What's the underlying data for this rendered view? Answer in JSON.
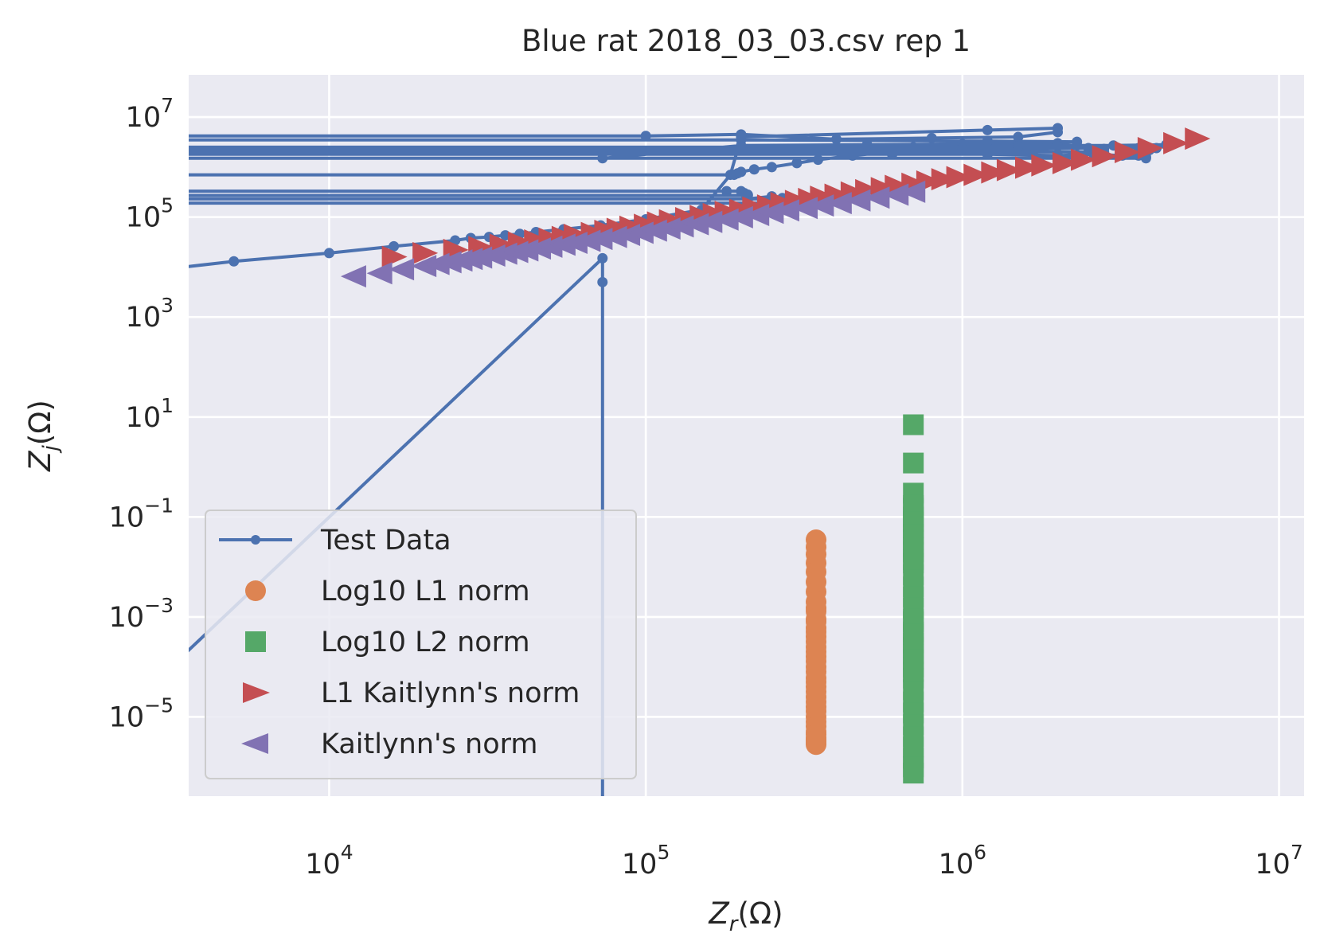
{
  "chart_data": {
    "type": "line",
    "title": "Blue rat 2018_03_03.csv rep 1",
    "xlabel": {
      "main": "Z",
      "sub": "r",
      "unit": "(Ω)"
    },
    "ylabel": {
      "main": "Z",
      "sub": "j",
      "unit": "(Ω)"
    },
    "xscale": "log",
    "yscale": "log",
    "xlim": [
      3600,
      12000000
    ],
    "ylim": [
      2.6e-07,
      70000000
    ],
    "grid": true,
    "legend": {
      "position": "lower-left"
    },
    "x_ticks": [
      {
        "base": "10",
        "exp": "4",
        "value": 10000
      },
      {
        "base": "10",
        "exp": "5",
        "value": 100000
      },
      {
        "base": "10",
        "exp": "6",
        "value": 1000000
      },
      {
        "base": "10",
        "exp": "7",
        "value": 10000000
      }
    ],
    "y_ticks": [
      {
        "base": "10",
        "exp": "−5",
        "value": 1e-05
      },
      {
        "base": "10",
        "exp": "−3",
        "value": 0.001
      },
      {
        "base": "10",
        "exp": "−1",
        "value": 0.1
      },
      {
        "base": "10",
        "exp": "1",
        "value": 10
      },
      {
        "base": "10",
        "exp": "3",
        "value": 1000
      },
      {
        "base": "10",
        "exp": "5",
        "value": 100000
      },
      {
        "base": "10",
        "exp": "7",
        "value": 10000000
      }
    ],
    "series": [
      {
        "name": "Test Data",
        "marker": "point-line",
        "color": "#4c72b0",
        "x": [
          3000,
          5000,
          10000,
          16000,
          25000,
          28000,
          32000,
          36000,
          40000,
          45000,
          55000,
          72000,
          100000,
          150000,
          185000,
          200000,
          1200000,
          2000000,
          2000000,
          1500000,
          800000,
          400000,
          200000,
          100000,
          1000,
          1000,
          200000,
          1200000,
          2300000,
          2000000,
          1000000,
          500000,
          200000,
          73000,
          1000,
          1000,
          800000,
          1700000,
          2500000,
          2800000,
          2800000,
          1000,
          1000,
          600000,
          1200000,
          2000000,
          2600000,
          3200000,
          3600000,
          3800000,
          3800000,
          1000,
          1000,
          700000,
          1500000,
          2300000,
          3000000,
          3600000,
          3900000,
          4100000,
          4400000,
          2000000,
          1000000,
          600000,
          450000,
          350000,
          300000,
          250000,
          220000,
          200000,
          195000,
          190000,
          1000,
          1000,
          180000,
          200000,
          205000,
          210000,
          210000,
          1000,
          1000,
          210000,
          250000,
          270000,
          285000,
          285000,
          1000,
          1000,
          290000,
          350000,
          385000,
          390000,
          390000,
          1000,
          1000,
          73000,
          73000,
          73000
        ],
        "y": [
          9000,
          13000,
          19000,
          26000,
          34000,
          38000,
          40000,
          43000,
          46000,
          50000,
          57000,
          68000,
          90000,
          140000,
          700000,
          4000000,
          5500000,
          6000000,
          5000000,
          4000000,
          3800000,
          3600000,
          4500000,
          4200000,
          4200000,
          3500000,
          3500000,
          3300000,
          3200000,
          3000000,
          2900000,
          2800000,
          2700000,
          1500000,
          1500000,
          2200000,
          2200000,
          2300000,
          2400000,
          2300000,
          2000000,
          2000000,
          1800000,
          1800000,
          1800000,
          1700000,
          1800000,
          1700000,
          1700000,
          1600000,
          1500000,
          1500000,
          2500000,
          2500000,
          2600000,
          2700000,
          2700000,
          2400000,
          2200000,
          2400000,
          2800000,
          2600000,
          2400000,
          2000000,
          1700000,
          1400000,
          1200000,
          1000000,
          900000,
          800000,
          750000,
          700000,
          700000,
          330000,
          330000,
          330000,
          300000,
          280000,
          270000,
          270000,
          230000,
          230000,
          260000,
          240000,
          240000,
          230000,
          230000,
          190000,
          190000,
          200000,
          220000,
          230000,
          230000,
          230000,
          1e-07,
          15000,
          5000,
          1e-07
        ]
      },
      {
        "name": "Log10 L1 norm",
        "marker": "circle",
        "color": "#dd8452",
        "x": [
          345000,
          345000,
          345000,
          345000,
          345000,
          345000,
          345000,
          345000,
          345000,
          345000,
          345000,
          345000,
          345000,
          345000,
          345000,
          345000,
          345000,
          345000,
          345000,
          345000,
          345000,
          345000,
          345000,
          345000,
          345000,
          345000,
          345000,
          345000,
          345000,
          345000,
          345000,
          345000,
          345000,
          345000,
          345000,
          345000,
          345000,
          345000,
          345000,
          345000
        ],
        "y": [
          0.035,
          0.025,
          0.018,
          0.012,
          0.008,
          0.005,
          0.0032,
          0.002,
          0.0013,
          0.0008,
          0.0005,
          0.00032,
          0.0002,
          0.00013,
          8e-05,
          5e-05,
          3.2e-05,
          2e-05,
          1.3e-05,
          8e-06,
          5e-06,
          3.2e-06,
          0.0015,
          0.0009,
          0.0006,
          0.0004,
          0.00025,
          0.00016,
          0.0001,
          6e-05,
          4e-05,
          2.5e-05,
          1.6e-05,
          1e-05,
          6.5e-06,
          4.5e-06,
          3.8e-06,
          3.5e-06,
          3e-06,
          2.8e-06
        ]
      },
      {
        "name": "Log10 L2 norm",
        "marker": "square",
        "color": "#55a868",
        "x": [
          700000,
          700000,
          700000,
          700000,
          700000,
          700000,
          700000,
          700000,
          700000,
          700000,
          700000,
          700000,
          700000,
          700000,
          700000,
          700000,
          700000,
          700000,
          700000,
          700000,
          700000,
          700000,
          700000,
          700000,
          700000,
          700000,
          700000,
          700000,
          700000,
          700000,
          700000,
          700000,
          700000,
          700000,
          700000,
          700000,
          700000,
          700000
        ],
        "y": [
          7,
          1.2,
          0.3,
          0.17,
          0.1,
          0.06,
          0.035,
          0.02,
          0.012,
          0.007,
          0.004,
          0.0025,
          0.0015,
          0.0009,
          0.0005,
          0.0003,
          0.00018,
          0.0001,
          6e-05,
          3.5e-05,
          2e-05,
          1.2e-05,
          7e-06,
          4e-06,
          2.5e-06,
          1.5e-06,
          1e-06,
          7.5e-07,
          0.15,
          0.08,
          0.045,
          0.025,
          0.014,
          0.0008,
          0.00045,
          0.00025,
          0.00014,
          8e-05
        ]
      },
      {
        "name": "L1 Kaitlynn's norm",
        "marker": "triangle-right",
        "color": "#c44e52",
        "x": [
          16000,
          20000,
          25000,
          30000,
          35000,
          40000,
          45000,
          50000,
          55000,
          60000,
          68000,
          75000,
          82000,
          90000,
          100000,
          110000,
          120000,
          135000,
          150000,
          165000,
          180000,
          200000,
          220000,
          245000,
          270000,
          300000,
          330000,
          360000,
          400000,
          450000,
          500000,
          560000,
          620000,
          700000,
          780000,
          870000,
          970000,
          1100000,
          1250000,
          1400000,
          1600000,
          1800000,
          2100000,
          2400000,
          2800000,
          3300000,
          3900000,
          4700000,
          5500000
        ],
        "y": [
          16000,
          19000,
          22000,
          25000,
          28000,
          31000,
          34000,
          37000,
          40000,
          44000,
          48000,
          53000,
          58000,
          64000,
          70000,
          78000,
          86000,
          95000,
          105000,
          115000,
          127000,
          140000,
          155000,
          170000,
          190000,
          210000,
          230000,
          255000,
          280000,
          310000,
          345000,
          380000,
          420000,
          465000,
          515000,
          570000,
          630000,
          700000,
          780000,
          870000,
          970000,
          1080000,
          1200000,
          1400000,
          1650000,
          2000000,
          2400000,
          3000000,
          3700000
        ]
      },
      {
        "name": "Kaitlynn's norm",
        "marker": "triangle-left",
        "color": "#8172b3",
        "x": [
          12000,
          14500,
          17000,
          20000,
          22000,
          24000,
          26000,
          28000,
          30000,
          33000,
          36000,
          39000,
          42000,
          46000,
          50000,
          55000,
          60000,
          66000,
          72000,
          80000,
          88000,
          97000,
          107000,
          118000,
          130000,
          145000,
          160000,
          180000,
          200000,
          225000,
          250000,
          280000,
          320000,
          360000,
          410000,
          470000,
          540000,
          620000,
          700000
        ],
        "y": [
          6500,
          7500,
          9000,
          10500,
          11500,
          12500,
          13500,
          14500,
          15500,
          17000,
          18500,
          20000,
          21500,
          23500,
          25500,
          28000,
          30500,
          33500,
          36500,
          40000,
          44000,
          48500,
          53500,
          59000,
          65000,
          72000,
          80000,
          89000,
          99000,
          110000,
          122000,
          136000,
          152000,
          170000,
          190000,
          215000,
          245000,
          280000,
          320000
        ]
      }
    ]
  }
}
